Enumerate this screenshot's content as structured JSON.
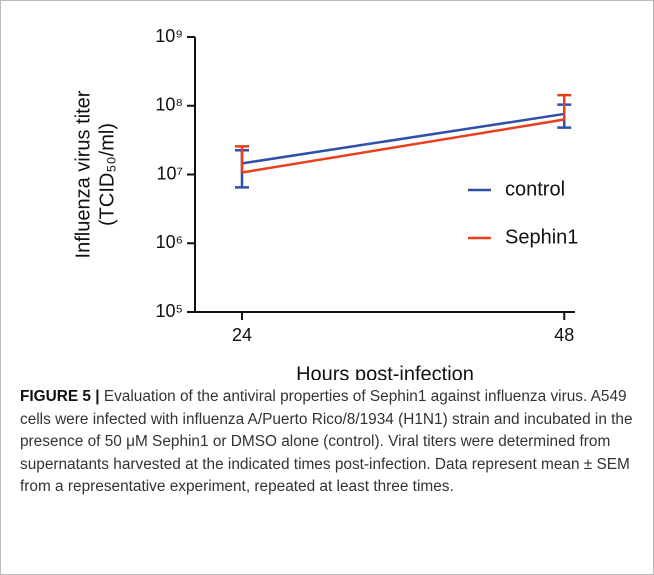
{
  "chart_data": {
    "type": "line",
    "y_label": [
      "Influenza virus titer",
      "(TCID₅₀/ml)"
    ],
    "x_label": "Hours post-infection",
    "x": [
      24,
      48
    ],
    "xlim": [
      20.5,
      48.8
    ],
    "xticks": [
      24,
      48
    ],
    "ylim": [
      100000,
      1000000000
    ],
    "log_y": true,
    "yticks": [
      {
        "value": 100000,
        "label": "10⁵"
      },
      {
        "value": 1000000,
        "label": "10⁶"
      },
      {
        "value": 10000000,
        "label": "10⁷"
      },
      {
        "value": 100000000,
        "label": "10⁸"
      },
      {
        "value": 1000000000,
        "label": "10⁹"
      }
    ],
    "legend": "right",
    "series": [
      {
        "name": "control",
        "color": "#2f4fa8",
        "values": [
          14500000,
          76000000
        ],
        "errors": [
          8000000,
          28000000
        ]
      },
      {
        "name": "Sephin1",
        "color": "#e8401c",
        "values": [
          10700000,
          63000000
        ],
        "errors": [
          15000000,
          80000000
        ]
      }
    ]
  },
  "figure_label": "FIGURE 5 |",
  "caption": "Evaluation of the antiviral properties of Sephin1 against influenza virus. A549 cells were infected with influenza A/Puerto Rico/8/1934 (H1N1) strain and incubated in the presence of 50 μM Sephin1 or DMSO alone (control). Viral titers were determined from supernatants harvested at the indicated times post-infection. Data represent mean ± SEM from a representative experiment, repeated at least three times."
}
